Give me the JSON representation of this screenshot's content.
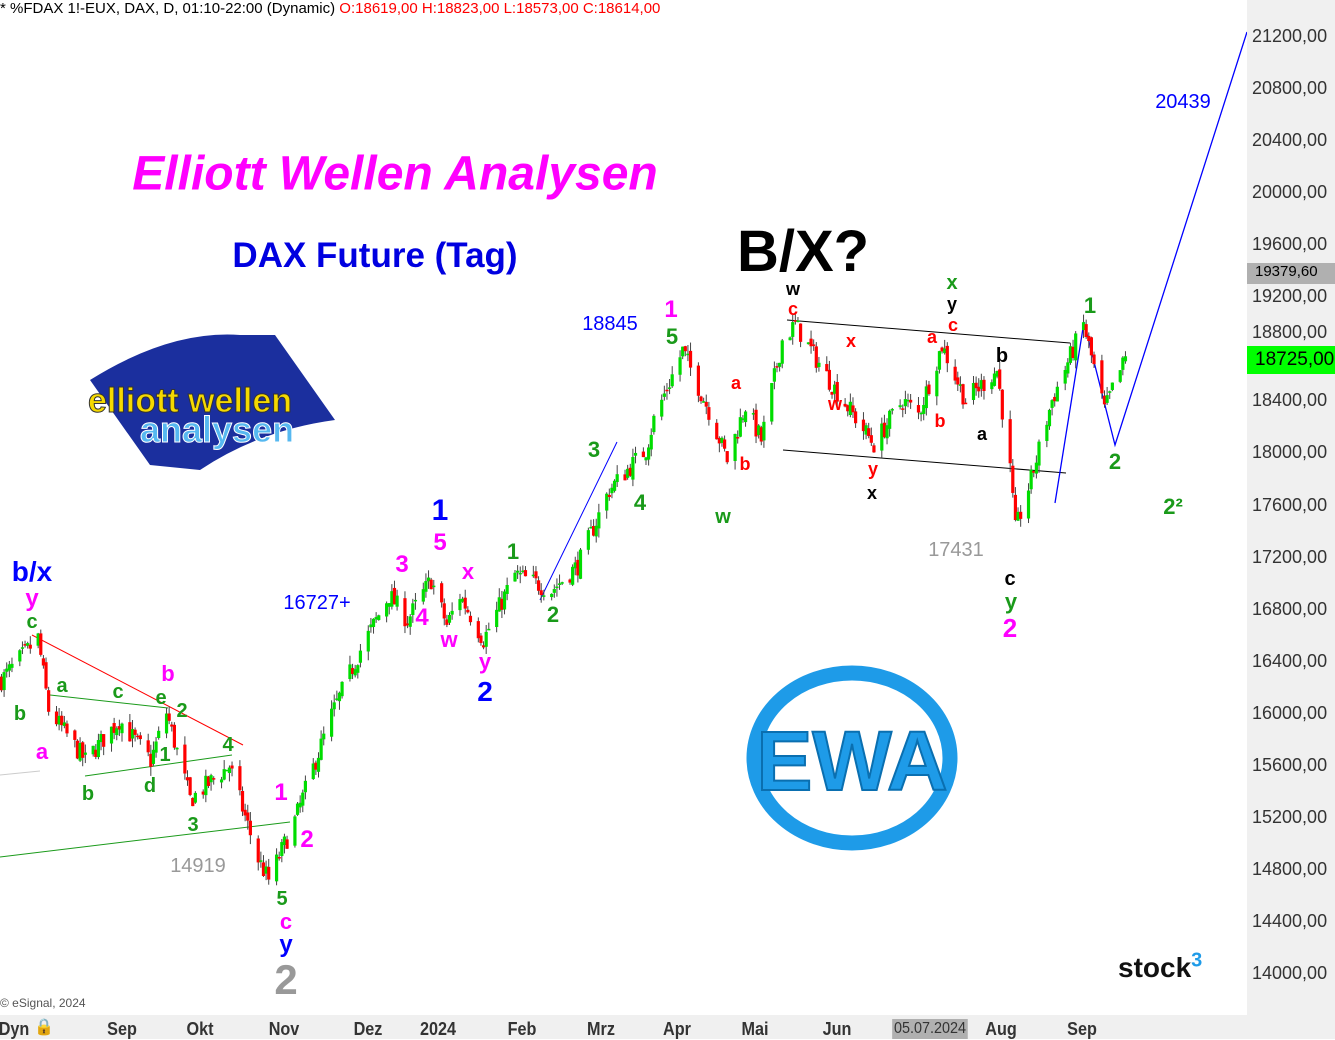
{
  "header": {
    "symbol": "* %FDAX 1!-EUX, DAX, D, 01:10-22:00 (Dynamic)",
    "ohlc": "O:18619,00 H:18823,00 L:18573,00 C:18614,00"
  },
  "title": "Elliott Wellen Analysen",
  "subtitle": "DAX Future (Tag)",
  "logo_text": "elliott wellen analysen",
  "ewa_logo": "EWA",
  "brand": "stock³",
  "copyright": "© eSignal, 2024",
  "x_axis": {
    "left_label": "Dyn",
    "date_marker": "05.07.2024",
    "ticks": [
      "Sep",
      "Okt",
      "Nov",
      "Dez",
      "2024",
      "Feb",
      "Mrz",
      "Apr",
      "Mai",
      "Jun",
      "Aug",
      "Sep"
    ]
  },
  "price_boxes": {
    "level": "19379,60",
    "last": "18725,00",
    "last_color": "#00ff00"
  },
  "colors": {
    "up": "#00dd00",
    "down": "#ff0000",
    "magenta": "#ff00ff",
    "blue": "#0000ff",
    "green": "#1a9a1a",
    "red": "#ff0000",
    "gray": "#999999",
    "ewa": "#1e9be8"
  },
  "annotations": [
    "b/x",
    "y",
    "c",
    "b",
    "a",
    "a",
    "c",
    "b",
    "d",
    "b",
    "e",
    "2",
    "1",
    "4",
    "3",
    "14919",
    "1",
    "2",
    "5",
    "c",
    "y",
    "2",
    "16727+",
    "3",
    "4",
    "w",
    "x",
    "y",
    "2",
    "1",
    "5",
    "1",
    "2",
    "3",
    "4",
    "18845",
    "1",
    "5",
    "a",
    "b",
    "w",
    "w",
    "c",
    "x",
    "w",
    "y",
    "x",
    "a",
    "b",
    "x",
    "y",
    "c",
    "b",
    "a",
    "17431",
    "c",
    "y",
    "2",
    "1",
    "2",
    "2²",
    "20439",
    "B/X?"
  ],
  "chart_data": {
    "type": "candlestick",
    "title": "%FDAX 1!-EUX, DAX, D",
    "y_ticks": [
      "21200,00",
      "20800,00",
      "20400,00",
      "20000,00",
      "19600,00",
      "19200,00",
      "18800,00",
      "18400,00",
      "18000,00",
      "17600,00",
      "17200,00",
      "16800,00",
      "16400,00",
      "16000,00",
      "15600,00",
      "15200,00",
      "14800,00",
      "14400,00",
      "14000,00"
    ],
    "ylim": [
      14000,
      21200
    ],
    "xlim": [
      "2023-07-17",
      "2024-10-21"
    ],
    "grid": false,
    "price_path": [
      [
        "2023-07-17",
        16260
      ],
      [
        "2023-07-31",
        16580
      ],
      [
        "2023-08-04",
        16030
      ],
      [
        "2023-08-18",
        15640
      ],
      [
        "2023-08-31",
        15950
      ],
      [
        "2023-09-12",
        15640
      ],
      [
        "2023-09-18",
        16010
      ],
      [
        "2023-09-27",
        15340
      ],
      [
        "2023-10-12",
        15600
      ],
      [
        "2023-10-23",
        14880
      ],
      [
        "2023-10-27",
        14720
      ],
      [
        "2023-11-06",
        15180
      ],
      [
        "2023-11-20",
        15990
      ],
      [
        "2023-12-01",
        16490
      ],
      [
        "2023-12-12",
        16910
      ],
      [
        "2023-12-19",
        16720
      ],
      [
        "2023-12-28",
        17030
      ],
      [
        "2024-01-03",
        16680
      ],
      [
        "2024-01-08",
        16910
      ],
      [
        "2024-01-17",
        16570
      ],
      [
        "2024-01-29",
        17070
      ],
      [
        "2024-02-12",
        16950
      ],
      [
        "2024-02-22",
        17140
      ],
      [
        "2024-03-05",
        17720
      ],
      [
        "2024-03-19",
        18030
      ],
      [
        "2024-03-22",
        18260
      ],
      [
        "2024-04-02",
        18790
      ],
      [
        "2024-04-12",
        18330
      ],
      [
        "2024-04-19",
        17950
      ],
      [
        "2024-04-26",
        18370
      ],
      [
        "2024-05-02",
        18100
      ],
      [
        "2024-05-10",
        18870
      ],
      [
        "2024-05-15",
        18990
      ],
      [
        "2024-05-29",
        18530
      ],
      [
        "2024-06-14",
        18070
      ],
      [
        "2024-06-25",
        18410
      ],
      [
        "2024-07-01",
        18300
      ],
      [
        "2024-07-10",
        18830
      ],
      [
        "2024-07-19",
        18410
      ],
      [
        "2024-07-31",
        18640
      ],
      [
        "2024-08-05",
        17870
      ],
      [
        "2024-08-07",
        17410
      ],
      [
        "2024-08-13",
        17800
      ],
      [
        "2024-08-21",
        18410
      ],
      [
        "2024-09-02",
        18990
      ],
      [
        "2024-09-10",
        18330
      ],
      [
        "2024-09-13",
        18490
      ],
      [
        "2024-09-18",
        18725
      ]
    ]
  }
}
